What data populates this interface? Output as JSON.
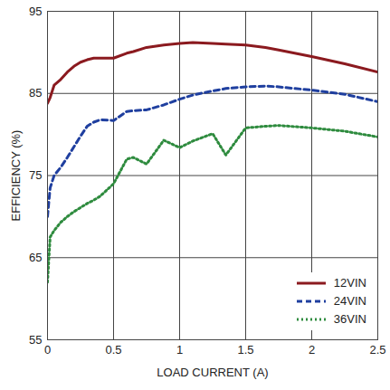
{
  "chart_data": {
    "type": "line",
    "x_label": "LOAD CURRENT (A)",
    "y_label": "EFFICIENCY (%)",
    "xlim": [
      0,
      2.5
    ],
    "xticks": [
      0,
      0.5,
      1,
      1.5,
      2,
      2.5
    ],
    "ylim": [
      55,
      95
    ],
    "yticks": [
      55,
      65,
      75,
      85,
      95
    ],
    "grid": true,
    "legend": "bottom-right",
    "x": [
      0,
      0.02,
      0.05,
      0.1,
      0.15,
      0.2,
      0.25,
      0.3,
      0.35,
      0.4,
      0.5,
      0.6,
      0.65,
      0.75,
      0.88,
      1.0,
      1.1,
      1.25,
      1.35,
      1.5,
      1.65,
      1.75,
      2.0,
      2.25,
      2.5
    ],
    "series": [
      {
        "name": "12VIN",
        "color": "#8b1a1f",
        "line_style": "solid",
        "values": [
          83.8,
          84.5,
          86.0,
          86.7,
          87.6,
          88.3,
          88.8,
          89.1,
          89.3,
          89.3,
          89.3,
          89.9,
          90.1,
          90.6,
          90.9,
          91.1,
          91.2,
          91.1,
          91.0,
          90.9,
          90.6,
          90.3,
          89.5,
          88.6,
          87.6
        ]
      },
      {
        "name": "24VIN",
        "color": "#1f3f9f",
        "line_style": "dashed",
        "values": [
          70.0,
          73.5,
          75.0,
          76.0,
          77.2,
          78.5,
          79.8,
          81.0,
          81.5,
          81.8,
          81.7,
          82.8,
          82.9,
          83.0,
          83.6,
          84.3,
          84.8,
          85.3,
          85.6,
          85.8,
          85.9,
          85.8,
          85.4,
          84.9,
          84.0
        ]
      },
      {
        "name": "36VIN",
        "color": "#2e8b3e",
        "line_style": "dotted",
        "values": [
          62.0,
          67.5,
          68.3,
          69.3,
          70.0,
          70.6,
          71.1,
          71.6,
          72.0,
          72.5,
          74.0,
          77.0,
          77.2,
          76.4,
          79.3,
          78.4,
          79.2,
          80.1,
          77.5,
          80.8,
          81.0,
          81.1,
          80.8,
          80.4,
          79.7
        ]
      }
    ]
  }
}
